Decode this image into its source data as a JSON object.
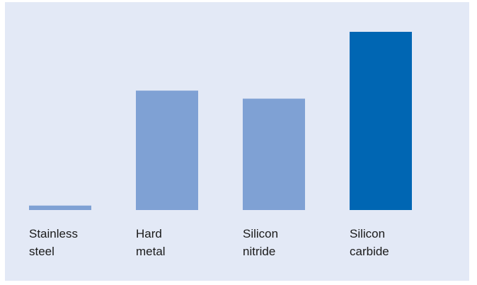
{
  "chart_data": {
    "type": "bar",
    "title": "",
    "xlabel": "",
    "ylabel": "",
    "categories": [
      [
        "Stainless",
        "steel"
      ],
      [
        "Hard",
        "metal"
      ],
      [
        "Silicon",
        "nitride"
      ],
      [
        "Silicon",
        "carbide"
      ]
    ],
    "values": [
      2.5,
      67,
      62.5,
      100
    ],
    "ylim": [
      0,
      100
    ],
    "grid": false,
    "highlight_index": 3,
    "colors": {
      "panel": "#e3e9f6",
      "bar": "#7fa1d4",
      "highlight": "#0066b3",
      "text": "#1a1a1a"
    }
  }
}
